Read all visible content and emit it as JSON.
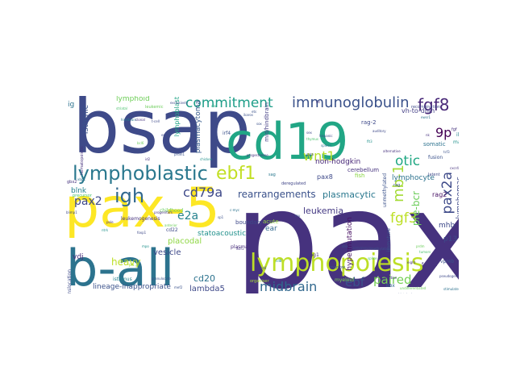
{
  "words": [
    {
      "t": "pax5",
      "c": "#46327e"
    },
    {
      "t": "bsap",
      "c": "#3e4a89"
    },
    {
      "t": "pax-5",
      "c": "#fde725"
    },
    {
      "t": "cd19",
      "c": "#21a685"
    },
    {
      "t": "lymphopoiesis",
      "c": "#bddf26"
    },
    {
      "t": "b-all",
      "c": "#2c738e"
    },
    {
      "t": "lymphoblastic",
      "c": "#2a788e"
    },
    {
      "t": "igh",
      "c": "#31688e"
    },
    {
      "t": "ebf1",
      "c": "#c2df23"
    },
    {
      "t": "immunoglobulin",
      "c": "#3b528b"
    },
    {
      "t": "commitment",
      "c": "#1f9e89"
    },
    {
      "t": "fgf8",
      "c": "#482878"
    },
    {
      "t": "cd79a",
      "c": "#3e4989"
    },
    {
      "t": "mb-1",
      "c": "#a5db36"
    },
    {
      "t": "wnt1",
      "c": "#b5de2b"
    },
    {
      "t": "pax2a",
      "c": "#3e4a89"
    },
    {
      "t": "9p",
      "c": "#440154"
    },
    {
      "t": "otic",
      "c": "#22a884"
    },
    {
      "t": "fgf3",
      "c": "#bddf26"
    },
    {
      "t": "midbrain",
      "c": "#31688e"
    },
    {
      "t": "ebf",
      "c": "#3b528b"
    },
    {
      "t": "paired",
      "c": "#75d054"
    },
    {
      "t": "pax2",
      "c": "#3e4989"
    },
    {
      "t": "e2a",
      "c": "#26828e"
    },
    {
      "t": "rearrangements",
      "c": "#3b528b"
    },
    {
      "t": "plasmacytic",
      "c": "#2a788e"
    },
    {
      "t": "leukemia",
      "c": "#443983"
    },
    {
      "t": "pre-bcr",
      "c": "#6ccd5a"
    },
    {
      "t": "heavy",
      "c": "#bddf26"
    },
    {
      "t": "cd20",
      "c": "#2c728e"
    },
    {
      "t": "lambda5",
      "c": "#3e4989"
    },
    {
      "t": "lineage-inappropriate",
      "c": "#3b528b"
    },
    {
      "t": "statoacoustic",
      "c": "#21918c"
    },
    {
      "t": "placodal",
      "c": "#8fd744"
    },
    {
      "t": "vesicle",
      "c": "#3e4989"
    },
    {
      "t": "hypermutation",
      "c": "#471063"
    },
    {
      "t": "ear",
      "c": "#31688e"
    },
    {
      "t": "acute",
      "c": "#95d840"
    },
    {
      "t": "lymphoblast",
      "c": "#20a486"
    },
    {
      "t": "lymphoid",
      "c": "#6ece58"
    },
    {
      "t": "isthmic",
      "c": "#3b528b"
    },
    {
      "t": "blnk",
      "c": "#26828e"
    },
    {
      "t": "ig",
      "c": "#2c728e"
    },
    {
      "t": "vdj",
      "c": "#472d7b"
    },
    {
      "t": "lymphomas",
      "c": "#3e4989"
    },
    {
      "t": "lymphocyte",
      "c": "#2c728e"
    },
    {
      "t": "mhb",
      "c": "#3e4a89"
    },
    {
      "t": "p13",
      "c": "#3e4a89"
    },
    {
      "t": "rag2",
      "c": "#471164"
    },
    {
      "t": "non-hodgkin",
      "c": "#482878"
    },
    {
      "t": "pax8",
      "c": "#3e4989"
    },
    {
      "t": "cerebellum",
      "c": "#46327e"
    },
    {
      "t": "fish",
      "c": "#8bd646"
    },
    {
      "t": "unmethylated",
      "c": "#3b528b"
    },
    {
      "t": "deregulated",
      "c": "#404688"
    },
    {
      "t": "mid/hindbrain",
      "c": "#433e85"
    },
    {
      "t": "plasmacytoma",
      "c": "#375b8d"
    },
    {
      "t": "irf4",
      "c": "#3b528b"
    },
    {
      "t": "vh-to-dhjh",
      "c": "#433e85"
    },
    {
      "t": "somatic",
      "c": "#2c728e"
    },
    {
      "t": "rag-2",
      "c": "#3e4989"
    },
    {
      "t": "leukemogenesis",
      "c": "#46327e"
    },
    {
      "t": "precursor",
      "c": "#4ac16d"
    },
    {
      "t": "childhood",
      "c": "#65cb5e"
    },
    {
      "t": "boundary",
      "c": "#3e4989"
    },
    {
      "t": "rag1",
      "c": "#46327e"
    },
    {
      "t": "marrow",
      "c": "#3b528b"
    },
    {
      "t": "myeloid",
      "c": "#7ad151"
    },
    {
      "t": "isthmus",
      "c": "#26828e"
    },
    {
      "t": "organiser",
      "c": "#a8db34"
    },
    {
      "t": "translocation",
      "c": "#3e4a89"
    },
    {
      "t": "immature",
      "c": "#3b528b"
    },
    {
      "t": "fgf10a",
      "c": "#46327e"
    },
    {
      "t": "vpreb",
      "c": "#3b528b"
    },
    {
      "t": "box",
      "c": "#31688e"
    },
    {
      "t": "undifferentiated",
      "c": "#6ccd5a"
    },
    {
      "t": "fusion",
      "c": "#3b528b"
    },
    {
      "t": "il-7",
      "c": "#26828e"
    },
    {
      "t": "mature",
      "c": "#21918c"
    },
    {
      "t": "hemopoietic",
      "c": "#2c728e"
    },
    {
      "t": "plasma",
      "c": "#472c7a"
    },
    {
      "t": "cd22",
      "c": "#3e4989"
    },
    {
      "t": "gbx2",
      "c": "#46327e"
    },
    {
      "t": "pu.1",
      "c": "#a0da39"
    },
    {
      "t": "fgf",
      "c": "#46327e"
    },
    {
      "t": "latent",
      "c": "#3e4a89"
    },
    {
      "t": "rag",
      "c": "#3b528b"
    },
    {
      "t": "sag",
      "c": "#2a788e"
    },
    {
      "t": "recombination",
      "c": "#3e4989"
    },
    {
      "t": "hematopoietic",
      "c": "#46327e"
    },
    {
      "t": "leukemic",
      "c": "#6ccd5a"
    },
    {
      "t": "exclusively",
      "c": "#3e4a89"
    },
    {
      "t": "striatal",
      "c": "#4ac16d"
    },
    {
      "t": "ikaros",
      "c": "#3b528b"
    },
    {
      "t": "auditory",
      "c": "#3e4989"
    },
    {
      "t": "ewsr1",
      "c": "#2c728e"
    },
    {
      "t": "dlx",
      "c": "#22a884"
    },
    {
      "t": "progenitors",
      "c": "#46327e"
    },
    {
      "t": "mpo",
      "c": "#21918c"
    },
    {
      "t": "mu",
      "c": "#3b528b"
    },
    {
      "t": "sex",
      "c": "#3e4989"
    },
    {
      "t": "anterior",
      "c": "#6ccd5a"
    },
    {
      "t": "prevalence",
      "c": "#3e4a89"
    },
    {
      "t": "alpha",
      "c": "#46327e"
    },
    {
      "t": "methylation",
      "c": "#3b528b"
    },
    {
      "t": "hindbrain",
      "c": "#2a788e"
    },
    {
      "t": "pseudogene",
      "c": "#3e4989"
    },
    {
      "t": "tumors",
      "c": "#4ac16d"
    },
    {
      "t": "entities",
      "c": "#46327e"
    },
    {
      "t": "histologic",
      "c": "#3b528b"
    },
    {
      "t": "c-myc",
      "c": "#2c728e"
    },
    {
      "t": "ikzf1",
      "c": "#46327e"
    },
    {
      "t": "cd4",
      "c": "#3e4a89"
    },
    {
      "t": "cd8",
      "c": "#21918c"
    },
    {
      "t": "ets",
      "c": "#3b528b"
    },
    {
      "t": "clonal",
      "c": "#46327e"
    },
    {
      "t": "t-cell",
      "c": "#3e4989"
    },
    {
      "t": "thymus",
      "c": "#4ac16d"
    },
    {
      "t": "spleen",
      "c": "#2c728e"
    },
    {
      "t": "nk",
      "c": "#46327e"
    },
    {
      "t": "tcf3",
      "c": "#3b528b"
    },
    {
      "t": "notch1",
      "c": "#3e4a89"
    },
    {
      "t": "flt3",
      "c": "#21918c"
    },
    {
      "t": "kit",
      "c": "#46327e"
    },
    {
      "t": "sox",
      "c": "#3b528b"
    },
    {
      "t": "en2",
      "c": "#3e4989"
    },
    {
      "t": "bcl6",
      "c": "#6ccd5a"
    },
    {
      "t": "id2",
      "c": "#46327e"
    },
    {
      "t": "prdm1",
      "c": "#3b528b"
    },
    {
      "t": "xbp1",
      "c": "#2c728e"
    },
    {
      "t": "blimp1",
      "c": "#3e4a89"
    },
    {
      "t": "pole",
      "c": "#46327e"
    },
    {
      "t": "ntrk",
      "c": "#21918c"
    },
    {
      "t": "sp1",
      "c": "#3b528b"
    },
    {
      "t": "foxp1",
      "c": "#3e4989"
    },
    {
      "t": "alternative",
      "c": "#46327e"
    },
    {
      "t": "dna",
      "c": "#3b528b"
    },
    {
      "t": "splice",
      "c": "#4ac16d"
    },
    {
      "t": "stimulated",
      "c": "#2c728e"
    },
    {
      "t": "eight",
      "c": "#46327e"
    },
    {
      "t": "hispanic",
      "c": "#3e4a89"
    },
    {
      "t": "chicken",
      "c": "#21918c"
    },
    {
      "t": "progesterone",
      "c": "#46327e"
    },
    {
      "t": "granulocyte",
      "c": "#3b528b"
    },
    {
      "t": "gata",
      "c": "#3e4989"
    },
    {
      "t": "prdm",
      "c": "#6ccd5a"
    },
    {
      "t": "cxcr4",
      "c": "#46327e"
    },
    {
      "t": "mef2",
      "c": "#3b528b"
    }
  ]
}
